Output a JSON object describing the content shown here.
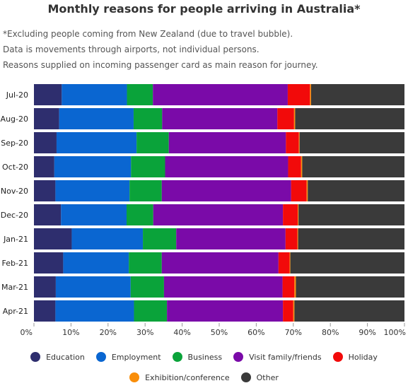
{
  "title": "Monthly reasons for people arriving in Australia*",
  "notes": [
    "*Excluding people coming from New Zealand (due to travel bubble).",
    "Data is movements through airports, not individual persons.",
    "Reasons supplied on incoming passenger card as main reason for journey."
  ],
  "chart_data": {
    "type": "bar",
    "orientation": "horizontal",
    "stacked": true,
    "categories": [
      "Jul-20",
      "Aug-20",
      "Sep-20",
      "Oct-20",
      "Nov-20",
      "Dec-20",
      "Jan-21",
      "Feb-21",
      "Mar-21",
      "Apr-21"
    ],
    "series": [
      {
        "name": "Education",
        "color": "#2e2e6e",
        "values": [
          7.5,
          6.8,
          6.1,
          5.5,
          5.8,
          7.3,
          10.2,
          7.9,
          5.9,
          5.8
        ]
      },
      {
        "name": "Employment",
        "color": "#0a66d1",
        "values": [
          17.6,
          20.1,
          21.6,
          20.7,
          20.0,
          17.7,
          19.2,
          17.7,
          20.2,
          21.2
        ]
      },
      {
        "name": "Business",
        "color": "#0aa33a",
        "values": [
          7.0,
          7.7,
          8.7,
          9.2,
          8.7,
          7.2,
          9.0,
          8.9,
          9.0,
          8.9
        ]
      },
      {
        "name": "Visit family/friends",
        "color": "#7a0aa8",
        "values": [
          36.4,
          31.1,
          31.6,
          33.2,
          34.9,
          35.0,
          29.5,
          31.5,
          32.0,
          31.3
        ]
      },
      {
        "name": "Holiday",
        "color": "#f20a0a",
        "values": [
          6.0,
          4.5,
          3.5,
          3.5,
          4.2,
          4.0,
          3.2,
          3.0,
          3.2,
          2.8
        ]
      },
      {
        "name": "Exhibition/conference",
        "color": "#f98e0a",
        "values": [
          0.3,
          0.3,
          0.2,
          0.3,
          0.3,
          0.2,
          0.2,
          0.2,
          0.4,
          0.3
        ]
      },
      {
        "name": "Other",
        "color": "#3a3a3a",
        "values": [
          25.2,
          29.5,
          28.3,
          27.6,
          26.1,
          28.6,
          28.7,
          30.8,
          29.3,
          29.7
        ]
      }
    ],
    "xlim": [
      0,
      100
    ],
    "xticks": [
      "0%",
      "10%",
      "20%",
      "30%",
      "40%",
      "50%",
      "60%",
      "70%",
      "80%",
      "90%",
      "100%"
    ],
    "legend": "bottom"
  }
}
